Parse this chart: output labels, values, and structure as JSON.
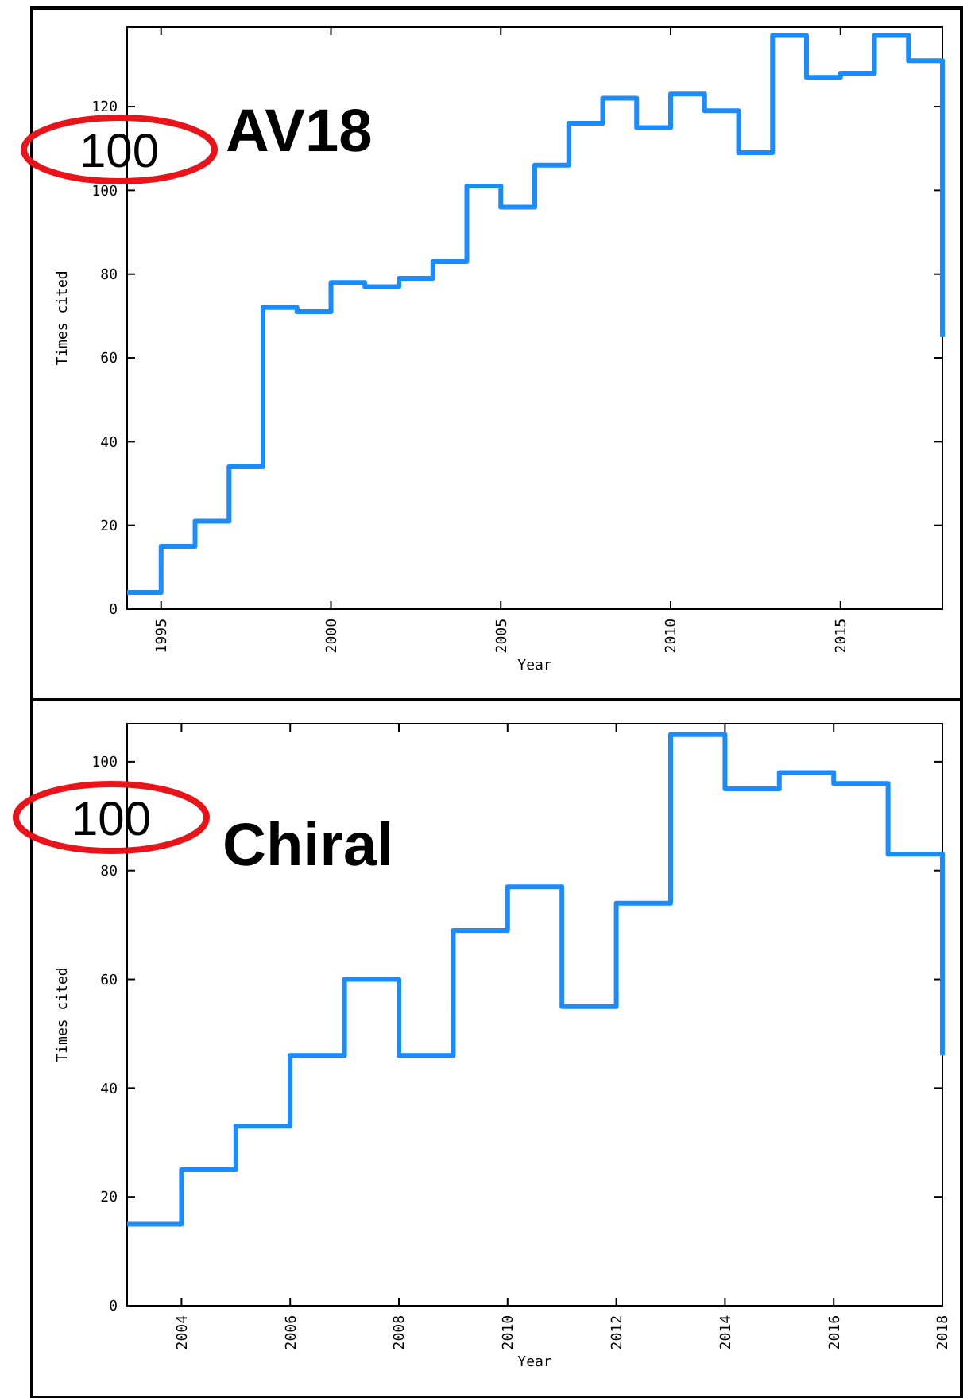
{
  "chart_data": [
    {
      "type": "step",
      "title": "AV18",
      "xlabel": "Year",
      "ylabel": "Times cited",
      "annotations": [
        "100"
      ],
      "x": [
        1994,
        1995,
        1996,
        1997,
        1998,
        1999,
        2000,
        2001,
        2002,
        2003,
        2004,
        2005,
        2006,
        2007,
        2008,
        2009,
        2010,
        2011,
        2012,
        2013,
        2014,
        2015,
        2016,
        2017,
        2018
      ],
      "series": [
        {
          "color": "#1a8cff",
          "values": [
            4,
            15,
            21,
            34,
            72,
            71,
            78,
            77,
            79,
            83,
            101,
            96,
            106,
            116,
            122,
            115,
            123,
            119,
            109,
            137,
            127,
            128,
            137,
            131,
            65
          ]
        }
      ],
      "xlim": [
        1994,
        2018
      ],
      "xticks": [
        1995,
        2000,
        2005,
        2010,
        2015
      ],
      "ylim": [
        0,
        139
      ],
      "yticks": [
        0,
        20,
        40,
        60,
        80,
        100,
        120
      ],
      "grid": false
    },
    {
      "type": "step",
      "title": "Chiral",
      "xlabel": "Year",
      "ylabel": "Times cited",
      "annotations": [
        "100"
      ],
      "x": [
        2003,
        2004,
        2005,
        2006,
        2007,
        2008,
        2009,
        2010,
        2011,
        2012,
        2013,
        2014,
        2015,
        2016,
        2017,
        2018
      ],
      "series": [
        {
          "color": "#1a8cff",
          "values": [
            15,
            25,
            33,
            46,
            60,
            46,
            69,
            77,
            55,
            74,
            105,
            95,
            98,
            96,
            83,
            46
          ]
        }
      ],
      "xlim": [
        2003,
        2018
      ],
      "xticks": [
        2004,
        2006,
        2008,
        2010,
        2012,
        2014,
        2016,
        2018
      ],
      "ylim": [
        0,
        107
      ],
      "yticks": [
        0,
        20,
        40,
        60,
        80,
        100
      ],
      "grid": false
    }
  ]
}
